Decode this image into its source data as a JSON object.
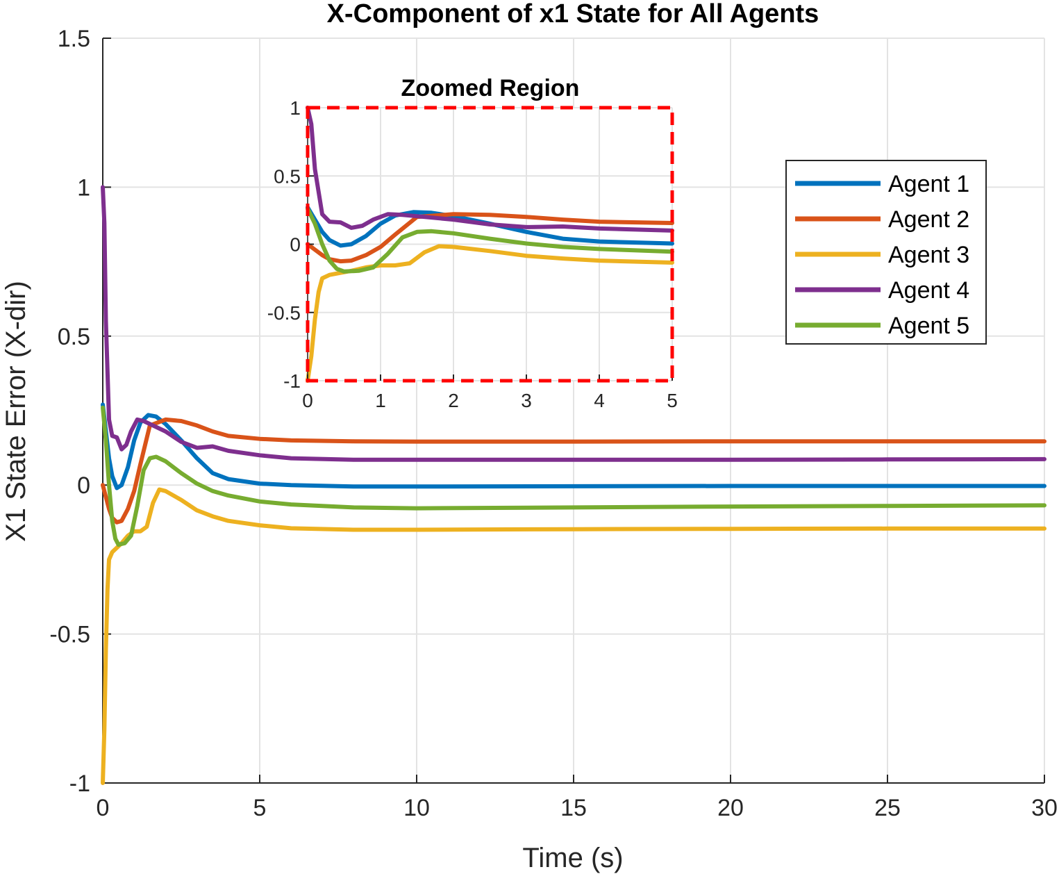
{
  "chart_data": [
    {
      "type": "line",
      "title": "X-Component of x1 State for All Agents",
      "xlabel": "Time (s)",
      "ylabel": "X1 State Error (X-dir)",
      "xlim": [
        0,
        30
      ],
      "ylim": [
        -1,
        1.5
      ],
      "xticks": [
        0,
        5,
        10,
        15,
        20,
        25,
        30
      ],
      "yticks": [
        -1,
        -0.5,
        0,
        0.5,
        1,
        1.5
      ],
      "xtick_labels": [
        "0",
        "5",
        "10",
        "15",
        "20",
        "25",
        "30"
      ],
      "ytick_labels": [
        "-1",
        "-0.5",
        "0",
        "0.5",
        "1",
        "1.5"
      ],
      "grid": true,
      "legend_position": "top-right",
      "series": [
        {
          "name": "Agent 1",
          "color": "#0072BD",
          "x": [
            0,
            0.1,
            0.2,
            0.3,
            0.45,
            0.6,
            0.8,
            1.0,
            1.2,
            1.45,
            1.7,
            2.0,
            2.5,
            3.0,
            3.5,
            4.0,
            5.0,
            6.0,
            8.0,
            10,
            15,
            20,
            25,
            30
          ],
          "y": [
            0.27,
            0.18,
            0.09,
            0.03,
            -0.01,
            0.0,
            0.06,
            0.15,
            0.21,
            0.235,
            0.23,
            0.205,
            0.15,
            0.09,
            0.04,
            0.02,
            0.005,
            0.0,
            -0.005,
            -0.005,
            -0.004,
            -0.003,
            -0.003,
            -0.003
          ]
        },
        {
          "name": "Agent 2",
          "color": "#D95319",
          "x": [
            0,
            0.1,
            0.2,
            0.3,
            0.45,
            0.6,
            0.8,
            1.0,
            1.2,
            1.5,
            2.0,
            2.5,
            3.0,
            3.5,
            4.0,
            5.0,
            6.0,
            8.0,
            10,
            15,
            20,
            25,
            30
          ],
          "y": [
            0.0,
            -0.04,
            -0.08,
            -0.11,
            -0.125,
            -0.12,
            -0.08,
            -0.02,
            0.07,
            0.2,
            0.22,
            0.215,
            0.2,
            0.18,
            0.165,
            0.155,
            0.15,
            0.147,
            0.146,
            0.146,
            0.147,
            0.147,
            0.147
          ]
        },
        {
          "name": "Agent 3",
          "color": "#EDB120",
          "x": [
            0,
            0.05,
            0.1,
            0.15,
            0.2,
            0.3,
            0.4,
            0.6,
            0.8,
            1.0,
            1.2,
            1.4,
            1.6,
            1.8,
            2.0,
            2.5,
            3.0,
            3.5,
            4.0,
            5.0,
            6.0,
            8.0,
            10,
            15,
            20,
            25,
            30
          ],
          "y": [
            -1.0,
            -0.82,
            -0.55,
            -0.35,
            -0.25,
            -0.225,
            -0.215,
            -0.195,
            -0.17,
            -0.155,
            -0.155,
            -0.14,
            -0.06,
            -0.015,
            -0.02,
            -0.05,
            -0.085,
            -0.105,
            -0.12,
            -0.135,
            -0.145,
            -0.15,
            -0.15,
            -0.148,
            -0.147,
            -0.146,
            -0.146
          ]
        },
        {
          "name": "Agent 4",
          "color": "#7E2F8E",
          "x": [
            0,
            0.05,
            0.1,
            0.2,
            0.3,
            0.45,
            0.6,
            0.75,
            0.9,
            1.1,
            1.3,
            1.6,
            2.0,
            2.5,
            3.0,
            3.5,
            4.0,
            5.0,
            6.0,
            8.0,
            10,
            15,
            20,
            25,
            30
          ],
          "y": [
            1.0,
            0.88,
            0.55,
            0.22,
            0.165,
            0.16,
            0.12,
            0.135,
            0.18,
            0.22,
            0.215,
            0.2,
            0.18,
            0.145,
            0.125,
            0.13,
            0.115,
            0.1,
            0.09,
            0.085,
            0.085,
            0.085,
            0.085,
            0.086,
            0.087
          ]
        },
        {
          "name": "Agent 5",
          "color": "#77AC30",
          "x": [
            0,
            0.1,
            0.2,
            0.3,
            0.4,
            0.5,
            0.7,
            0.9,
            1.1,
            1.3,
            1.5,
            1.7,
            2.0,
            2.5,
            3.0,
            3.5,
            4.0,
            5.0,
            6.0,
            8.0,
            10,
            15,
            20,
            25,
            30
          ],
          "y": [
            0.26,
            0.15,
            0.0,
            -0.12,
            -0.18,
            -0.2,
            -0.195,
            -0.17,
            -0.07,
            0.05,
            0.09,
            0.095,
            0.08,
            0.04,
            0.005,
            -0.02,
            -0.035,
            -0.055,
            -0.065,
            -0.075,
            -0.078,
            -0.075,
            -0.072,
            -0.07,
            -0.068
          ]
        }
      ]
    },
    {
      "type": "line",
      "title": "Zoomed Region",
      "xlim": [
        0,
        5
      ],
      "ylim": [
        -1,
        1
      ],
      "xticks": [
        0,
        1,
        2,
        3,
        4,
        5
      ],
      "yticks": [
        -1,
        -0.5,
        0,
        0.5,
        1
      ],
      "xtick_labels": [
        "0",
        "1",
        "2",
        "3",
        "4",
        "5"
      ],
      "ytick_labels": [
        "-1",
        "-0.5",
        "0",
        "0.5",
        "1"
      ],
      "grid": true,
      "border_color": "#FF0000",
      "border_style": "dashed"
    }
  ]
}
